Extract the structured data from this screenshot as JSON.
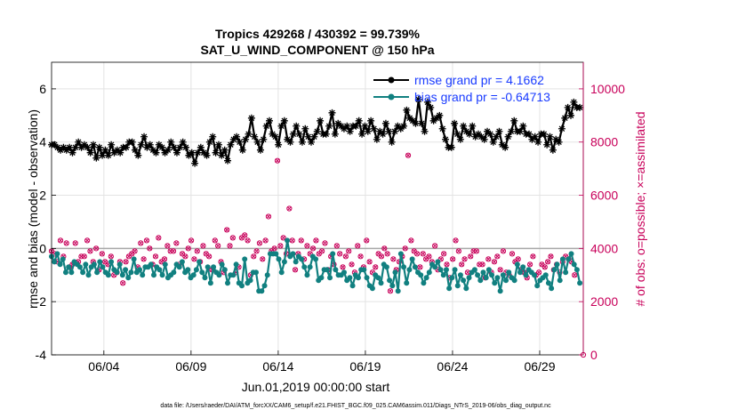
{
  "chart_data": {
    "type": "line",
    "title": "Tropics 429268 / 430392 = 99.739%",
    "subtitle": "SAT_U_WIND_COMPONENT @ 150 hPa",
    "xlabel": "Jun.01,2019 00:00:00 start",
    "ylabel": "rmse and bias (model - observation)",
    "ylabel_right": "# of obs: o=possible; ×=assimilated",
    "x_tick_labels": [
      "06/04",
      "06/09",
      "06/14",
      "06/19",
      "06/24",
      "06/29"
    ],
    "x_tick_days": [
      4,
      9,
      14,
      19,
      24,
      29
    ],
    "xlim_days": [
      1,
      31.5
    ],
    "ylim": [
      -4,
      7
    ],
    "y_ticks": [
      -4,
      -2,
      0,
      2,
      4,
      6
    ],
    "y2lim": [
      0,
      11000
    ],
    "y2_ticks": [
      0,
      2000,
      4000,
      6000,
      8000,
      10000
    ],
    "grid": true,
    "legend_location": "top-right",
    "series": [
      {
        "name": "rmse grand pr = 4.1662",
        "color": "#000000",
        "marker": "star",
        "values": [
          3.9,
          3.9,
          3.8,
          3.7,
          3.8,
          3.7,
          3.8,
          3.6,
          3.8,
          4.0,
          3.8,
          3.9,
          3.8,
          3.6,
          3.9,
          3.4,
          3.8,
          3.5,
          3.7,
          3.5,
          3.9,
          3.6,
          3.7,
          3.6,
          3.8,
          3.8,
          4.0,
          4.0,
          3.7,
          3.5,
          3.9,
          4.2,
          3.8,
          3.9,
          3.7,
          3.6,
          3.9,
          3.8,
          3.6,
          3.7,
          4.0,
          3.8,
          3.6,
          3.8,
          4.0,
          3.8,
          3.5,
          3.6,
          3.2,
          3.6,
          3.8,
          3.6,
          3.5,
          4.0,
          4.2,
          3.6,
          3.9,
          3.5,
          3.7,
          3.3,
          3.9,
          4.1,
          4.2,
          4.0,
          3.7,
          4.1,
          4.3,
          4.9,
          4.2,
          4.0,
          3.7,
          4.1,
          4.6,
          4.8,
          4.3,
          4.2,
          3.9,
          4.6,
          4.8,
          4.1,
          4.0,
          4.3,
          4.6,
          4.3,
          4.0,
          4.5,
          4.2,
          4.0,
          4.2,
          4.4,
          4.8,
          4.3,
          4.3,
          4.6,
          5.1,
          4.3,
          4.7,
          4.6,
          4.5,
          4.6,
          4.4,
          4.6,
          4.6,
          4.8,
          4.3,
          4.6,
          4.4,
          4.8,
          4.5,
          4.1,
          4.4,
          4.3,
          4.7,
          4.4,
          4.0,
          4.4,
          4.6,
          4.5,
          4.6,
          5.2,
          4.9,
          4.8,
          4.7,
          5.6,
          4.7,
          4.4,
          5.5,
          5.3,
          4.8,
          4.9,
          5.0,
          4.5,
          4.1,
          3.8,
          3.8,
          4.7,
          4.3,
          4.1,
          4.6,
          4.4,
          4.3,
          4.6,
          4.2,
          4.3,
          4.2,
          4.1,
          4.4,
          4.3,
          4.0,
          4.2,
          4.4,
          3.9,
          3.8,
          4.2,
          4.4,
          4.8,
          4.4,
          4.4,
          4.6,
          4.3,
          4.3,
          4.1,
          4.2,
          4.0,
          4.3,
          4.3,
          3.9,
          4.2,
          3.7,
          4.1,
          4.0,
          4.5,
          4.9,
          5.3,
          5.0,
          5.5,
          5.3,
          5.3
        ]
      },
      {
        "name": "bias grand pr = -0.64713",
        "color": "#118080",
        "marker": "circle",
        "values": [
          -0.3,
          -0.5,
          -0.2,
          -0.6,
          -0.4,
          -0.9,
          -0.7,
          -0.9,
          -0.5,
          -0.6,
          -0.7,
          -0.9,
          -0.6,
          -1.0,
          -0.7,
          -0.6,
          -0.9,
          -0.5,
          -0.7,
          -0.9,
          -1.0,
          -0.5,
          -0.8,
          -0.9,
          -0.6,
          -1.0,
          -0.8,
          -1.1,
          -0.9,
          -0.4,
          -0.9,
          -0.8,
          -1.0,
          -0.7,
          -0.7,
          -0.6,
          -1.0,
          -0.7,
          -0.8,
          -1.0,
          -0.6,
          -1.1,
          -1.0,
          -0.9,
          -0.6,
          -0.7,
          -0.5,
          -0.9,
          -0.8,
          -1.1,
          -1.0,
          -0.8,
          -0.5,
          -0.9,
          -1.1,
          -0.7,
          -1.3,
          -0.7,
          -0.9,
          -1.0,
          -0.6,
          -0.8,
          -1.3,
          -1.0,
          -1.0,
          -0.6,
          -1.3,
          -1.4,
          -0.4,
          -1.3,
          -1.2,
          -0.9,
          -0.9,
          -1.6,
          -1.6,
          -1.4,
          -1.0,
          -0.2,
          -0.2,
          -0.2,
          -0.4,
          -0.9,
          -0.5,
          0.3,
          -0.3,
          -0.2,
          -0.5,
          -0.3,
          -0.4,
          -0.7,
          -1.0,
          -0.7,
          -0.3,
          -0.4,
          -1.2,
          -1.1,
          -0.8,
          -0.8,
          -1.1,
          -0.2,
          -0.8,
          -1.0,
          -1.0,
          -0.9,
          -1.2,
          -1.1,
          -1.4,
          -1.0,
          -1.1,
          -0.8,
          -0.8,
          -1.1,
          -1.4,
          -1.5,
          -1.0,
          -1.1,
          -1.3,
          -0.6,
          -0.7,
          -1.2,
          -1.4,
          -0.9,
          -1.6,
          -0.2,
          -0.7,
          -1.3,
          -0.8,
          -0.4,
          -0.7,
          -0.9,
          -1.0,
          -1.3,
          -1.1,
          -0.9,
          -0.6,
          -0.7,
          -0.5,
          -0.8,
          -1.0,
          -0.8,
          -1.5,
          -1.1,
          -0.8,
          -1.4,
          -1.0,
          -1.2,
          -1.5,
          -1.1,
          -0.9,
          -0.8,
          -1.0,
          -1.2,
          -0.9,
          -1.1,
          -0.8,
          -1.0,
          -1.3,
          -1.1,
          -1.6,
          -1.0,
          -1.2,
          -0.9,
          -1.1,
          -1.2,
          -0.6,
          -0.9,
          -0.7,
          -1.0,
          -0.8,
          -0.9,
          -1.0,
          -1.4,
          -1.2,
          -1.1,
          -1.0,
          -1.3,
          -1.5,
          -0.8,
          -0.6,
          -1.2,
          -0.4,
          -0.9,
          -0.4,
          -0.2,
          -0.6,
          -0.8,
          -1.3
        ]
      }
    ],
    "obs_possible_y2": [
      3900,
      3800,
      3500,
      4300,
      3700,
      4200,
      3300,
      3400,
      4200,
      3500,
      3700,
      3700,
      4300,
      3900,
      3500,
      4000,
      3200,
      3800,
      3500,
      3400,
      3700,
      3000,
      3100,
      3500,
      2700,
      3500,
      3700,
      3800,
      3900,
      3300,
      4200,
      3600,
      4300,
      4000,
      3400,
      3700,
      4400,
      3500,
      3600,
      4100,
      3900,
      3900,
      4200,
      3400,
      3800,
      3700,
      4000,
      4300,
      3600,
      3900,
      3500,
      4100,
      3800,
      3700,
      3200,
      4300,
      4100,
      3500,
      3100,
      4700,
      4100,
      4400,
      3100,
      3300,
      4400,
      4500,
      4300,
      3000,
      3700,
      3900,
      4200,
      3600,
      4300,
      5200,
      3900,
      4000,
      7300,
      4100,
      4400,
      3800,
      5500,
      4300,
      3200,
      3800,
      4300,
      3600,
      4100,
      3800,
      4000,
      4300,
      3800,
      3900,
      4200,
      3200,
      3700,
      3400,
      4100,
      3800,
      3300,
      3700,
      3900,
      3400,
      3100,
      4100,
      3700,
      3300,
      4300,
      3500,
      3100,
      3300,
      3800,
      3700,
      4000,
      3800,
      2400,
      3600,
      3200,
      3500,
      3700,
      4000,
      7500,
      4300,
      3900,
      3800,
      3300,
      3800,
      3600,
      3700,
      3500,
      4100,
      3200,
      3600,
      3800,
      3400,
      2900,
      3600,
      4300,
      3900,
      3400,
      3600,
      3100,
      3700,
      3900,
      3900,
      3400,
      3400,
      2900,
      3600,
      3100,
      3500,
      3700,
      3200,
      3900,
      3100,
      3000,
      3800,
      3500,
      3600,
      3200,
      3100,
      2900,
      3400,
      3700,
      3000,
      3100,
      3400,
      3300,
      3500,
      3700,
      3200,
      3400,
      3100,
      3500,
      3700,
      3600,
      3500,
      3000
    ]
  },
  "footer": "data file: /Users/raeder/DAI/ATM_forcXX/CAM6_setup/f.e21.FHIST_BGC.f09_025.CAM6assim.011/Diags_NTrS_2019-06/obs_diag_output.nc",
  "colors": {
    "rmse": "#000000",
    "bias": "#118080",
    "obs": "#c8005a",
    "legend_text": "#1a3cff"
  }
}
